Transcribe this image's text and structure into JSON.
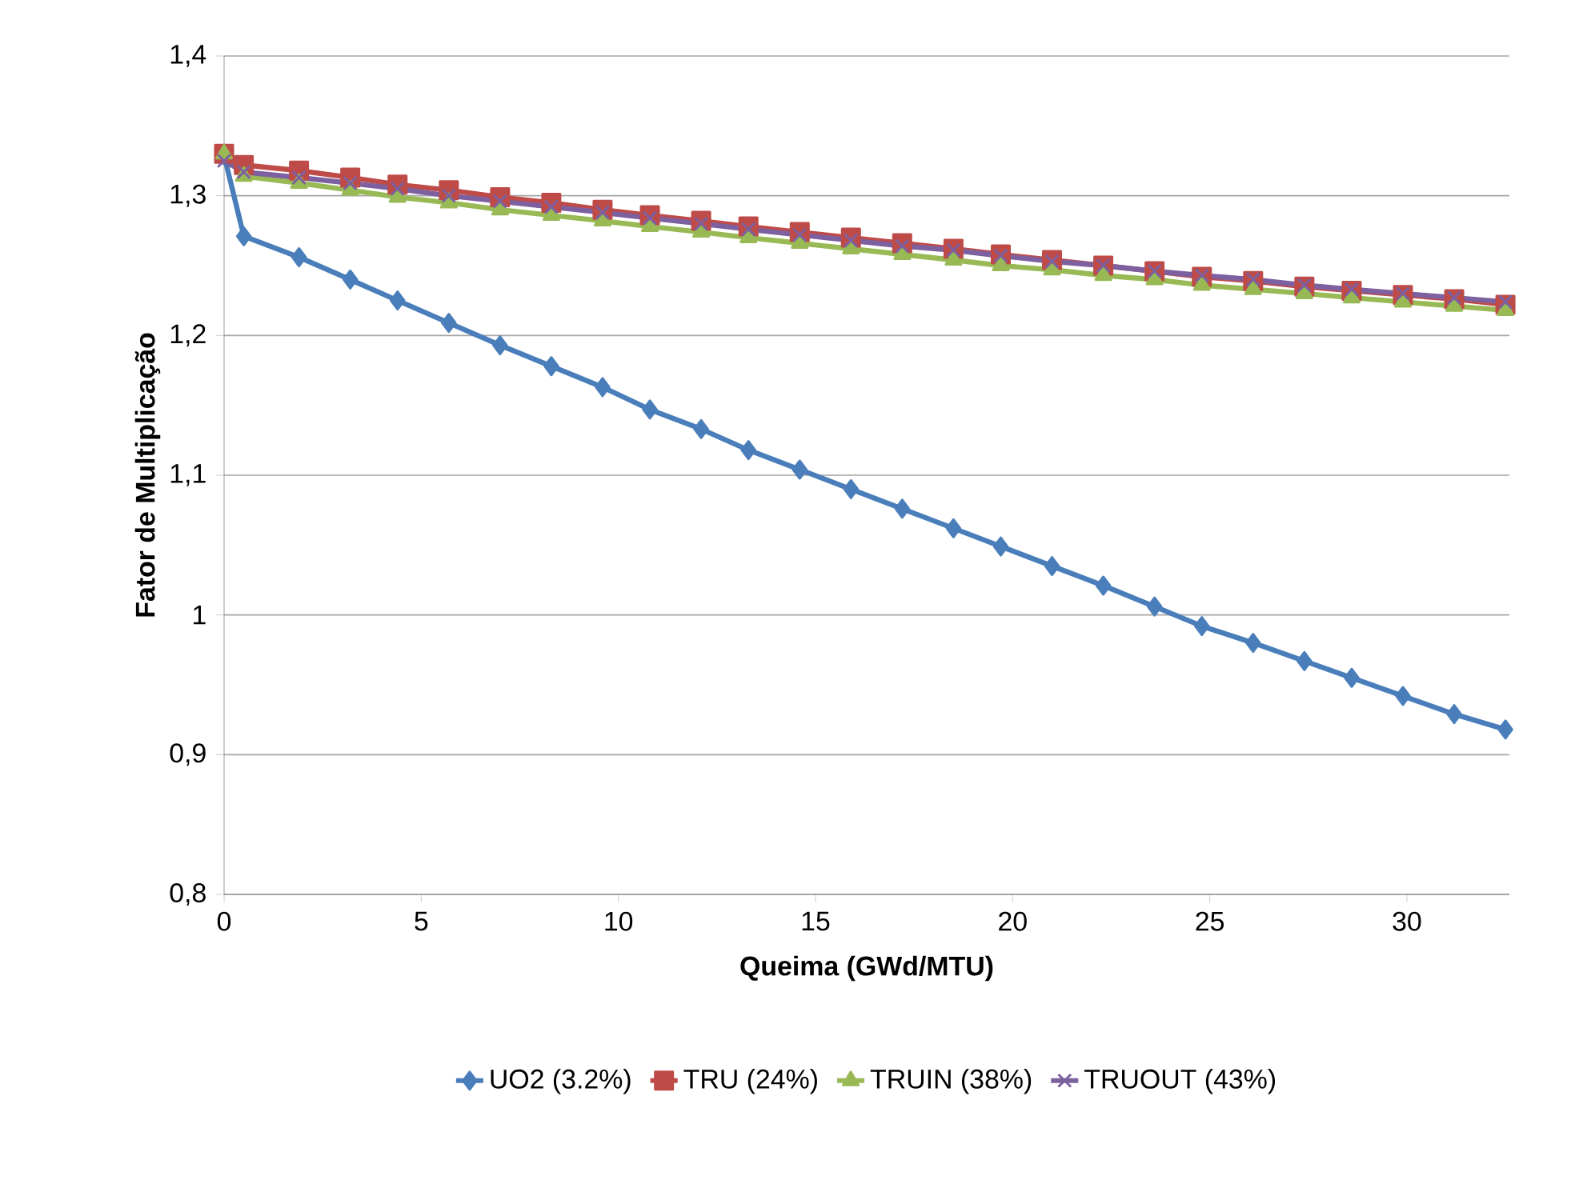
{
  "chart_data": {
    "type": "line",
    "xlabel": "Queima (GWd/MTU)",
    "ylabel": "Fator de Multiplicação",
    "x": [
      0,
      0.5,
      1.9,
      3.2,
      4.4,
      5.7,
      7.0,
      8.3,
      9.6,
      10.8,
      12.1,
      13.3,
      14.6,
      15.9,
      17.2,
      18.5,
      19.7,
      21.0,
      22.3,
      23.6,
      24.8,
      26.1,
      27.4,
      28.6,
      29.9,
      31.2,
      32.5
    ],
    "series": [
      {
        "name": "UO2 (3.2%)",
        "color": "#4a7ebb",
        "marker": "diamond",
        "values": [
          1.329,
          1.271,
          1.256,
          1.24,
          1.225,
          1.209,
          1.193,
          1.178,
          1.163,
          1.147,
          1.133,
          1.118,
          1.104,
          1.09,
          1.076,
          1.062,
          1.049,
          1.035,
          1.021,
          1.006,
          0.992,
          0.98,
          0.967,
          0.955,
          0.942,
          0.929,
          0.918
        ]
      },
      {
        "name": "TRU (24%)",
        "color": "#be4b48",
        "marker": "square",
        "values": [
          1.33,
          1.322,
          1.318,
          1.313,
          1.308,
          1.304,
          1.299,
          1.295,
          1.29,
          1.286,
          1.282,
          1.278,
          1.274,
          1.27,
          1.266,
          1.262,
          1.258,
          1.254,
          1.25,
          1.246,
          1.242,
          1.239,
          1.235,
          1.232,
          1.229,
          1.226,
          1.222
        ]
      },
      {
        "name": "TRUIN (38%)",
        "color": "#98b954",
        "marker": "triangle",
        "values": [
          1.33,
          1.314,
          1.309,
          1.304,
          1.299,
          1.295,
          1.29,
          1.286,
          1.282,
          1.278,
          1.274,
          1.27,
          1.266,
          1.262,
          1.258,
          1.254,
          1.25,
          1.247,
          1.243,
          1.24,
          1.236,
          1.233,
          1.23,
          1.227,
          1.224,
          1.221,
          1.218
        ]
      },
      {
        "name": "TRUOUT (43%)",
        "color": "#7d60a0",
        "marker": "cross",
        "values": [
          1.325,
          1.317,
          1.313,
          1.309,
          1.305,
          1.3,
          1.296,
          1.292,
          1.288,
          1.284,
          1.28,
          1.276,
          1.272,
          1.268,
          1.264,
          1.261,
          1.257,
          1.253,
          1.25,
          1.246,
          1.243,
          1.24,
          1.236,
          1.233,
          1.23,
          1.227,
          1.224
        ]
      }
    ],
    "xlim": [
      0,
      32.6
    ],
    "ylim": [
      0.8,
      1.4
    ],
    "xticks": [
      0,
      5,
      10,
      15,
      20,
      25,
      30
    ],
    "yticks": [
      {
        "value": 0.8,
        "label": "0,8"
      },
      {
        "value": 0.9,
        "label": "0,9"
      },
      {
        "value": 1.0,
        "label": "1"
      },
      {
        "value": 1.1,
        "label": "1,1"
      },
      {
        "value": 1.2,
        "label": "1,2"
      },
      {
        "value": 1.3,
        "label": "1,3"
      },
      {
        "value": 1.4,
        "label": "1,4"
      }
    ],
    "grid": "y",
    "legend": "bottom",
    "line_style": "solid"
  }
}
